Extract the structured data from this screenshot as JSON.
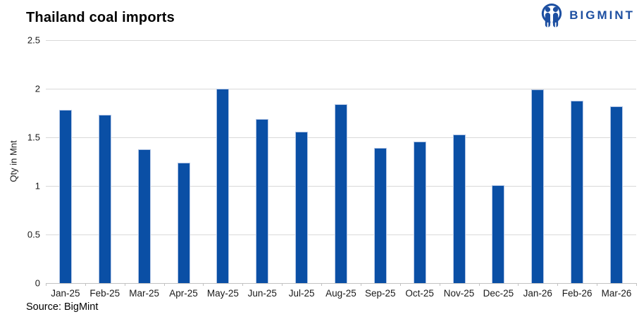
{
  "title": "Thailand coal imports",
  "brand": {
    "name": "BIGMINT",
    "color": "#1d4fa1"
  },
  "source": "Source: BigMint",
  "chart_data": {
    "type": "bar",
    "title": "Thailand coal imports",
    "categories": [
      "Jan-25",
      "Feb-25",
      "Mar-25",
      "Apr-25",
      "May-25",
      "Jun-25",
      "Jul-25",
      "Aug-25",
      "Sep-25",
      "Oct-25",
      "Nov-25",
      "Dec-25",
      "Jan-26",
      "Feb-26",
      "Mar-26"
    ],
    "values": [
      1.78,
      1.73,
      1.38,
      1.24,
      2.0,
      1.69,
      1.56,
      1.84,
      1.39,
      1.46,
      1.53,
      1.01,
      1.99,
      1.88,
      1.82
    ],
    "xlabel": "",
    "ylabel": "Qty in Mnt",
    "ylim": [
      0,
      2.5
    ],
    "yticks": [
      0,
      0.5,
      1,
      1.5,
      2,
      2.5
    ],
    "ytick_labels": [
      "0",
      "0.5",
      "1",
      "1.5",
      "2",
      "2.5"
    ],
    "grid": true,
    "legend": false,
    "bar_color": "#0a4fa5",
    "bar_border_color": "#b3c6e6",
    "gridline_color": "#d9d9d9",
    "axis_color": "#c2c2c2"
  }
}
